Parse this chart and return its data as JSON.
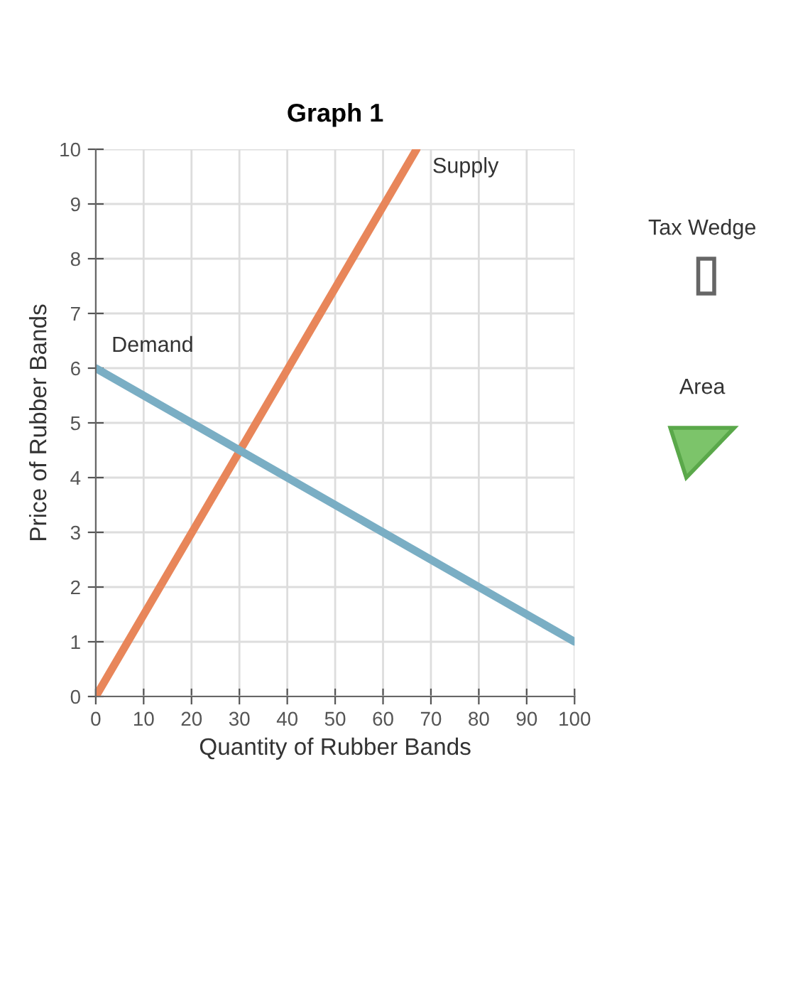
{
  "chart_data": {
    "type": "line",
    "title": "Graph 1",
    "xlabel": "Quantity of Rubber Bands",
    "ylabel": "Price of Rubber Bands",
    "series": [
      {
        "name": "Supply",
        "color": "#e8865a",
        "x": [
          0,
          67
        ],
        "values": [
          0,
          10
        ]
      },
      {
        "name": "Demand",
        "color": "#7aaec4",
        "x": [
          0,
          100
        ],
        "values": [
          6,
          1
        ]
      }
    ],
    "xlim": [
      0,
      100
    ],
    "xticks": [
      0,
      10,
      20,
      30,
      40,
      50,
      60,
      70,
      80,
      90,
      100
    ],
    "ylim": [
      0,
      10
    ],
    "yticks": [
      0,
      1,
      2,
      3,
      4,
      5,
      6,
      7,
      8,
      9,
      10
    ],
    "grid": true,
    "legend": false,
    "marker": "none",
    "line_style": "solid",
    "annotations": [
      "Tax Wedge",
      "Area"
    ]
  }
}
